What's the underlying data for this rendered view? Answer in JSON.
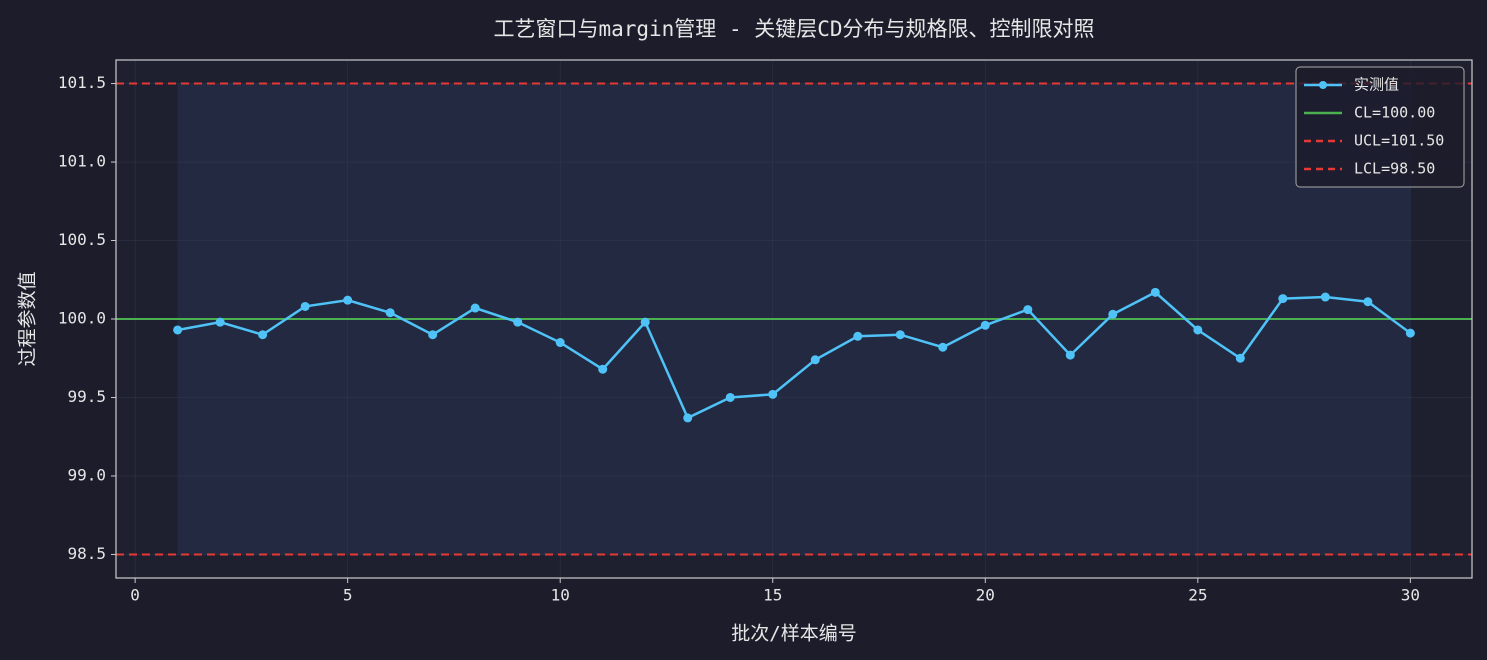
{
  "chart_data": {
    "type": "line",
    "title": "工艺窗口与margin管理 - 关键层CD分布与规格限、控制限对照",
    "xlabel": "批次/样本编号",
    "ylabel": "过程参数值",
    "x": [
      1,
      2,
      3,
      4,
      5,
      6,
      7,
      8,
      9,
      10,
      11,
      12,
      13,
      14,
      15,
      16,
      17,
      18,
      19,
      20,
      21,
      22,
      23,
      24,
      25,
      26,
      27,
      28,
      29,
      30
    ],
    "series": [
      {
        "name": "实测值",
        "color": "#4fc3f7",
        "values": [
          99.93,
          99.98,
          99.9,
          100.08,
          100.12,
          100.04,
          99.9,
          100.07,
          99.98,
          99.85,
          99.68,
          99.98,
          99.37,
          99.5,
          99.52,
          99.74,
          99.89,
          99.9,
          99.82,
          99.96,
          100.06,
          99.77,
          100.03,
          100.17,
          99.93,
          99.75,
          100.13,
          100.14,
          100.11,
          99.91
        ]
      }
    ],
    "lines": [
      {
        "name": "CL=100.00",
        "value": 100,
        "color": "#4caf50",
        "style": "solid"
      },
      {
        "name": "UCL=101.50",
        "value": 101.5,
        "color": "#e53935",
        "style": "dashed"
      },
      {
        "name": "LCL=98.50",
        "value": 98.5,
        "color": "#e53935",
        "style": "dashed"
      }
    ],
    "xlim": [
      -0.45,
      31.45
    ],
    "ylim": [
      98.35,
      101.65
    ],
    "xticks": [
      0,
      5,
      10,
      15,
      20,
      25,
      30
    ],
    "yticks": [
      98.5,
      {
        "value": 99,
        "label": "99.0"
      },
      99.5,
      {
        "value": 100,
        "label": "100.0"
      },
      100.5,
      {
        "value": 101,
        "label": "101.0"
      },
      101.5
    ],
    "grid": true,
    "legend": "upper right"
  }
}
